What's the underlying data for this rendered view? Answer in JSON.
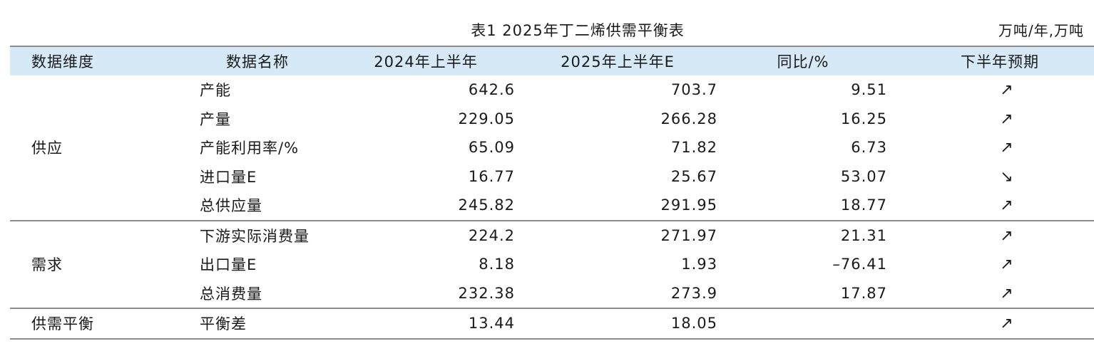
{
  "caption": {
    "title": "表1  2025年丁二烯供需平衡表",
    "unit": "万吨/年,万吨"
  },
  "headers": {
    "dimension": "数据维度",
    "name": "数据名称",
    "h2024": "2024年上半年",
    "h2025": "2025年上半年E",
    "yoy": "同比/%",
    "trend": "下半年预期"
  },
  "groups": {
    "supply": "供应",
    "demand": "需求",
    "balance": "供需平衡"
  },
  "rows": [
    {
      "name": "产能",
      "v2024": "642.6",
      "v2025": "703.7",
      "yoy": "9.51",
      "trend": "↗"
    },
    {
      "name": "产量",
      "v2024": "229.05",
      "v2025": "266.28",
      "yoy": "16.25",
      "trend": "↗"
    },
    {
      "name": "产能利用率/%",
      "v2024": "65.09",
      "v2025": "71.82",
      "yoy": "6.73",
      "trend": "↗"
    },
    {
      "name": "进口量E",
      "v2024": "16.77",
      "v2025": "25.67",
      "yoy": "53.07",
      "trend": "↘"
    },
    {
      "name": "总供应量",
      "v2024": "245.82",
      "v2025": "291.95",
      "yoy": "18.77",
      "trend": "↗"
    },
    {
      "name": "下游实际消费量",
      "v2024": "224.2",
      "v2025": "271.97",
      "yoy": "21.31",
      "trend": "↗"
    },
    {
      "name": "出口量E",
      "v2024": "8.18",
      "v2025": "1.93",
      "yoy": "–76.41",
      "trend": "↗"
    },
    {
      "name": "总消费量",
      "v2024": "232.38",
      "v2025": "273.9",
      "yoy": "17.87",
      "trend": "↗"
    },
    {
      "name": "平衡差",
      "v2024": "13.44",
      "v2025": "18.05",
      "yoy": "",
      "trend": "↗"
    }
  ]
}
